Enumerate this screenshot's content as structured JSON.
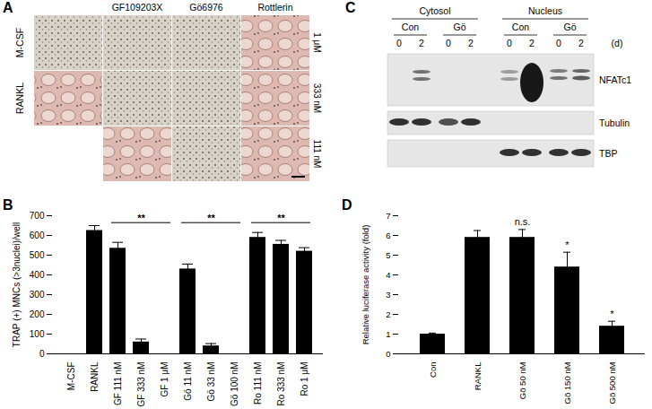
{
  "panels": {
    "A": {
      "label": "A",
      "columns": [
        "GF109203X",
        "Gö6976",
        "Rottlerin"
      ],
      "rows": [
        "M-CSF",
        "RANKL"
      ],
      "concentrations": [
        "1 μM",
        "333 nM",
        "111 nM"
      ]
    },
    "C": {
      "label": "C",
      "fractions": [
        "Cytosol",
        "Nucleus"
      ],
      "treatments": [
        "Con",
        "Gö",
        "Con",
        "Gö"
      ],
      "days": [
        0,
        2,
        0,
        2,
        0,
        2,
        0,
        2
      ],
      "day_unit": "(d)",
      "proteins": [
        "NFATc1",
        "Tubulin",
        "TBP"
      ]
    }
  },
  "chart_data": [
    {
      "type": "bar",
      "title": "B",
      "categories": [
        "M-CSF",
        "RANKL",
        "GF 111 nM",
        "GF 333 nM",
        "GF 1 μM",
        "Gö 11 nM",
        "Gö 33 nM",
        "Gö 100 nM",
        "Ro 111 nM",
        "Ro 333 nM",
        "Ro 1 μM"
      ],
      "values": [
        0,
        625,
        535,
        60,
        0,
        430,
        40,
        0,
        590,
        555,
        520
      ],
      "errors": [
        0,
        25,
        30,
        15,
        0,
        25,
        12,
        0,
        25,
        20,
        18
      ],
      "color": "#000000",
      "ylabel": "TRAP (+) MNCs (>3nuclei)/well",
      "ylim": [
        0,
        700
      ],
      "yticks": [
        0,
        100,
        200,
        300,
        400,
        500,
        600,
        700
      ],
      "annotations": [
        {
          "text": "**",
          "from": "GF 111 nM",
          "to": "GF 1 μM"
        },
        {
          "text": "**",
          "from": "Gö 11 nM",
          "to": "Gö 100 nM"
        },
        {
          "text": "**",
          "from": "Ro 111 nM",
          "to": "Ro 1 μM"
        }
      ]
    },
    {
      "type": "bar",
      "title": "D",
      "categories": [
        "Con",
        "RANKL",
        "Gö 50 nM",
        "Gö 150 nM",
        "Gö 500 nM"
      ],
      "values": [
        1,
        5.9,
        5.9,
        4.4,
        1.4
      ],
      "errors": [
        0.05,
        0.35,
        0.4,
        0.75,
        0.25
      ],
      "color": "#000000",
      "ylabel": "Relative luciferase activity (fold)",
      "ylim": [
        0,
        7
      ],
      "yticks": [
        0,
        1,
        2,
        3,
        4,
        5,
        6,
        7
      ],
      "annotations": [
        {
          "text": "n.s.",
          "category": "Gö 50 nM"
        },
        {
          "text": "*",
          "category": "Gö 150 nM"
        },
        {
          "text": "*",
          "category": "Gö 500 nM"
        }
      ]
    }
  ]
}
